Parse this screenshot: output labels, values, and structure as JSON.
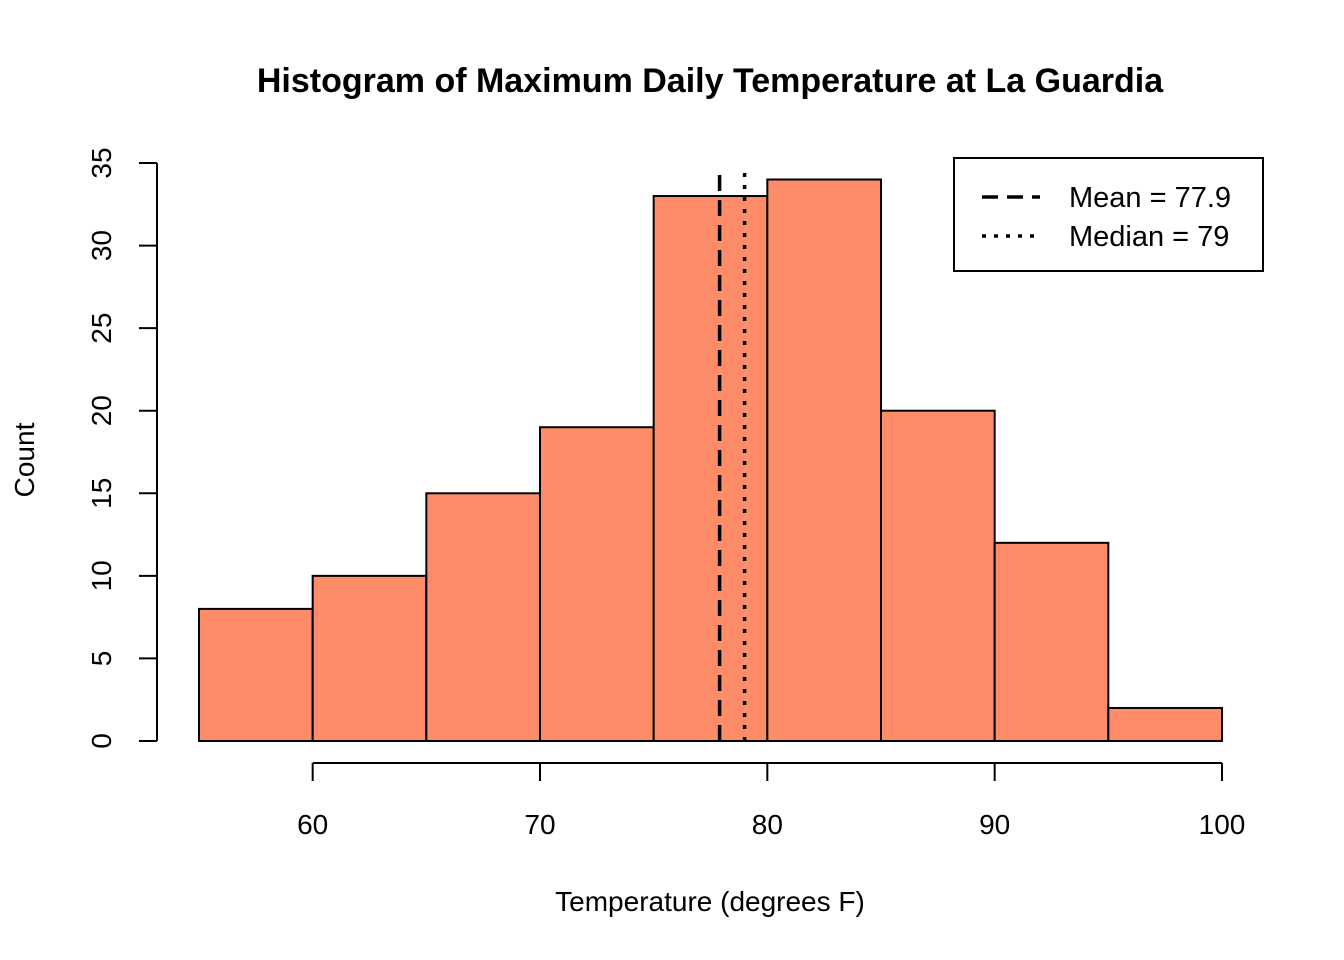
{
  "chart_data": {
    "type": "bar",
    "title": "Histogram of Maximum Daily Temperature at La Guardia",
    "xlabel": "Temperature (degrees F)",
    "ylabel": "Count",
    "bins": [
      {
        "from": 55,
        "to": 60,
        "count": 8
      },
      {
        "from": 60,
        "to": 65,
        "count": 10
      },
      {
        "from": 65,
        "to": 70,
        "count": 15
      },
      {
        "from": 70,
        "to": 75,
        "count": 19
      },
      {
        "from": 75,
        "to": 80,
        "count": 33
      },
      {
        "from": 80,
        "to": 85,
        "count": 34
      },
      {
        "from": 85,
        "to": 90,
        "count": 20
      },
      {
        "from": 90,
        "to": 95,
        "count": 12
      },
      {
        "from": 95,
        "to": 100,
        "count": 2
      }
    ],
    "xlim": [
      55,
      100
    ],
    "ylim": [
      0,
      35
    ],
    "x_ticks": [
      "60",
      "70",
      "80",
      "90",
      "100"
    ],
    "y_ticks": [
      "0",
      "5",
      "10",
      "15",
      "20",
      "25",
      "30",
      "35"
    ],
    "bar_color": "#FF8C69",
    "grid": false,
    "reference_lines": [
      {
        "name": "Mean = 77.9",
        "value": 77.9,
        "style": "dashed"
      },
      {
        "name": "Median = 79",
        "value": 79,
        "style": "dotted"
      }
    ],
    "legend_position": "top-right"
  }
}
